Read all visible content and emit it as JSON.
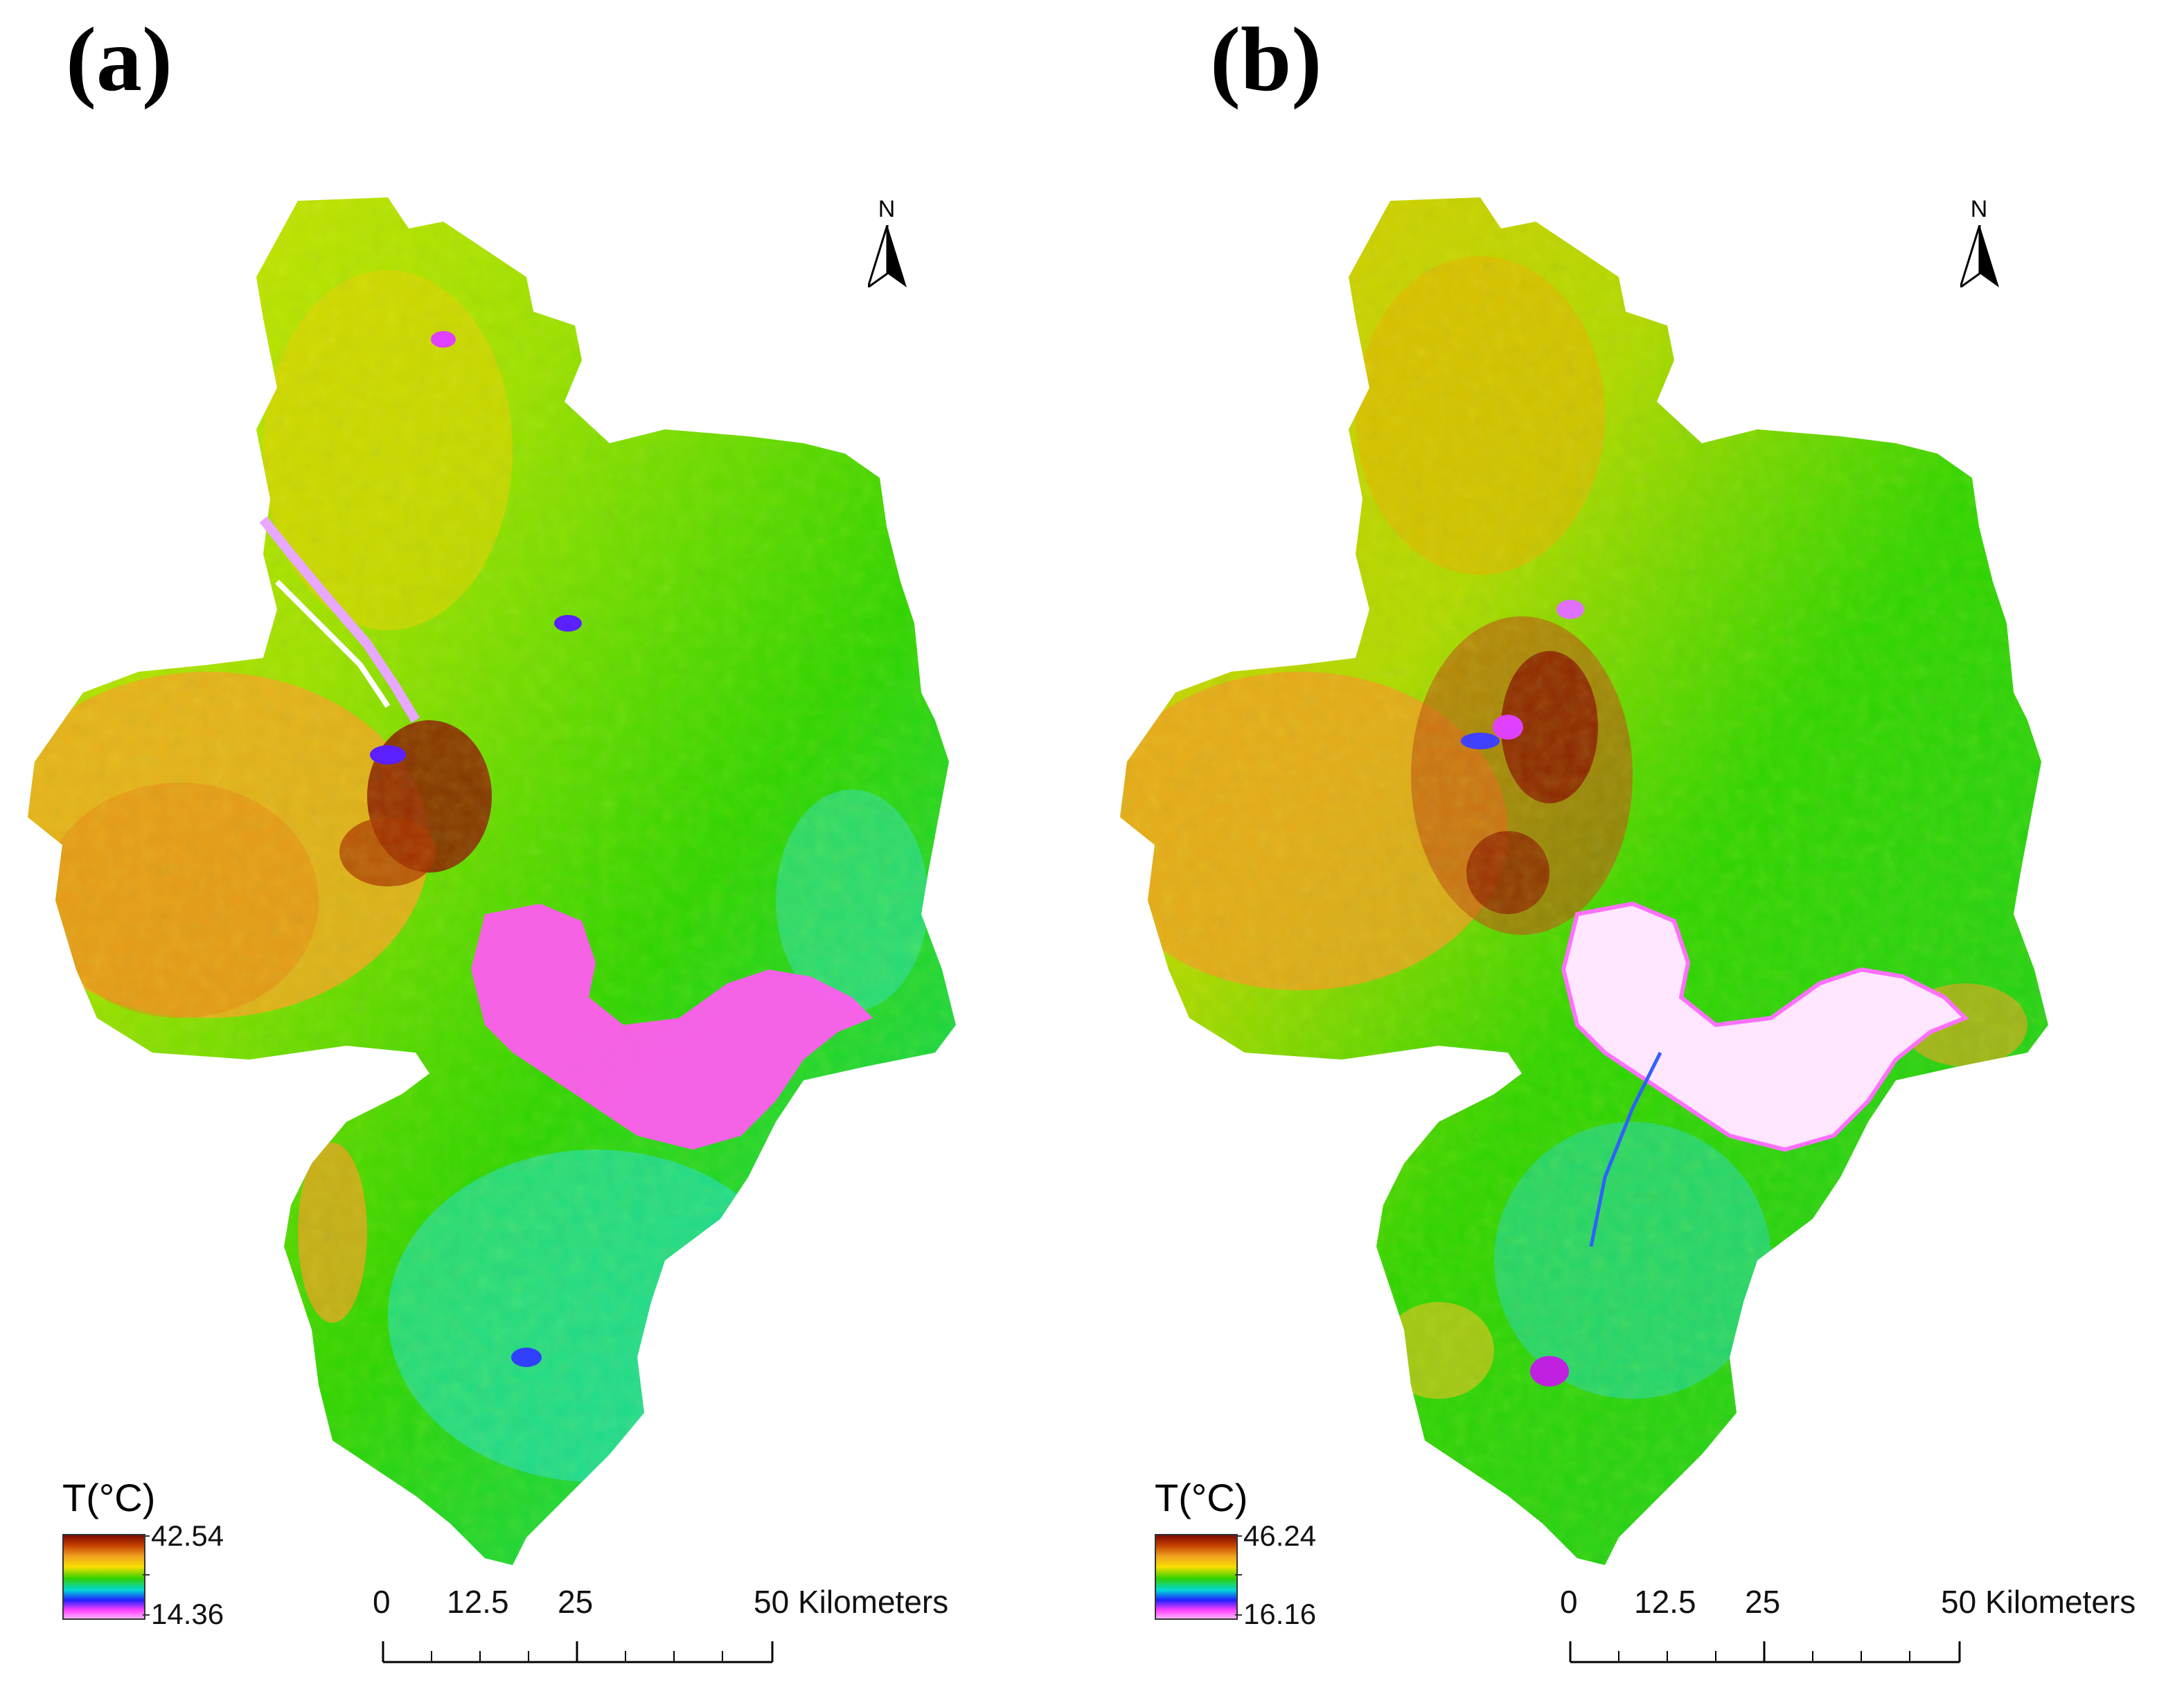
{
  "panels": [
    {
      "label": "(a)",
      "legend": {
        "title": "T(°C)",
        "max": "42.54",
        "min": "14.36"
      },
      "north": "N"
    },
    {
      "label": "(b)",
      "legend": {
        "title": "T(°C)",
        "max": "46.24",
        "min": "16.16"
      },
      "north": "N"
    }
  ],
  "scale_bar": {
    "ticks": [
      "0",
      "12.5",
      "25",
      "50 Kilometers"
    ]
  },
  "colors": {
    "hot": "#8b1a00",
    "warm": "#f0a020",
    "mild": "#e8e000",
    "vegetation": "#22d400",
    "cool": "#00e0e0",
    "cold": "#2020ff",
    "water": "#ff66ff",
    "water_b": "#ffe8ff"
  }
}
